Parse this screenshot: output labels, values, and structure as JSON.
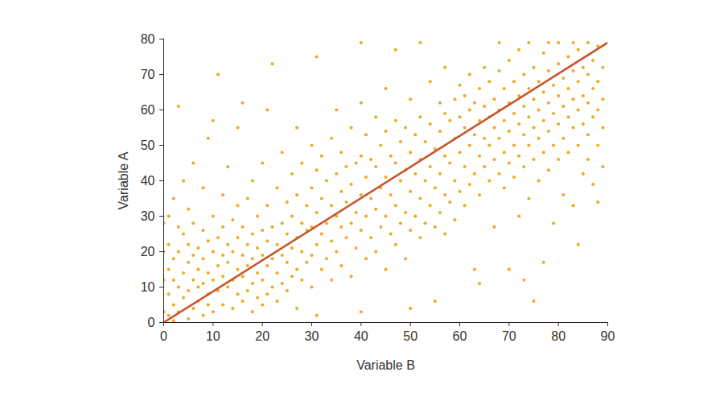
{
  "chart_data": {
    "type": "scatter",
    "x_label": "Variable B",
    "y_label": "Variable A",
    "xlim": [
      0,
      90
    ],
    "ylim": [
      0,
      80
    ],
    "xticks": [
      0,
      10,
      20,
      30,
      40,
      50,
      60,
      70,
      80,
      90
    ],
    "yticks": [
      0,
      10,
      20,
      30,
      40,
      50,
      60,
      70,
      80
    ],
    "grid": false,
    "series": [
      {
        "type": "scatter",
        "marker": "circle",
        "color": "#f0a81c",
        "x": [
          0,
          0,
          0,
          0,
          1,
          1,
          1,
          1,
          1,
          2,
          2,
          2,
          2,
          2,
          3,
          3,
          3,
          3,
          3,
          4,
          4,
          4,
          4,
          5,
          5,
          5,
          5,
          5,
          6,
          6,
          6,
          6,
          6,
          7,
          7,
          7,
          7,
          8,
          8,
          8,
          8,
          8,
          9,
          9,
          9,
          9,
          9,
          10,
          10,
          10,
          10,
          10,
          11,
          11,
          11,
          11,
          12,
          12,
          12,
          12,
          12,
          13,
          13,
          13,
          13,
          14,
          14,
          14,
          14,
          15,
          15,
          15,
          15,
          15,
          16,
          16,
          16,
          16,
          16,
          17,
          17,
          17,
          17,
          18,
          18,
          18,
          18,
          18,
          19,
          19,
          19,
          19,
          20,
          20,
          20,
          20,
          20,
          21,
          21,
          21,
          21,
          21,
          22,
          22,
          22,
          22,
          23,
          23,
          23,
          23,
          24,
          24,
          24,
          24,
          25,
          25,
          25,
          25,
          26,
          26,
          26,
          26,
          27,
          27,
          27,
          27,
          27,
          28,
          28,
          28,
          28,
          29,
          29,
          29,
          30,
          30,
          30,
          30,
          30,
          31,
          31,
          31,
          31,
          31,
          32,
          32,
          32,
          32,
          33,
          33,
          33,
          34,
          34,
          34,
          34,
          35,
          35,
          35,
          35,
          36,
          36,
          36,
          36,
          37,
          37,
          37,
          38,
          38,
          38,
          38,
          39,
          39,
          39,
          40,
          40,
          40,
          40,
          40,
          40,
          41,
          41,
          41,
          41,
          42,
          42,
          42,
          43,
          43,
          43,
          43,
          44,
          44,
          44,
          45,
          45,
          45,
          45,
          45,
          46,
          46,
          46,
          47,
          47,
          47,
          47,
          47,
          48,
          48,
          48,
          49,
          49,
          49,
          49,
          50,
          50,
          50,
          50,
          50,
          51,
          51,
          51,
          52,
          52,
          52,
          52,
          52,
          53,
          53,
          53,
          54,
          54,
          54,
          54,
          55,
          55,
          55,
          55,
          56,
          56,
          56,
          56,
          57,
          57,
          57,
          57,
          57,
          58,
          58,
          58,
          59,
          59,
          59,
          59,
          60,
          60,
          60,
          60,
          61,
          61,
          61,
          61,
          62,
          62,
          62,
          62,
          63,
          63,
          63,
          63,
          64,
          64,
          64,
          64,
          64,
          65,
          65,
          65,
          65,
          66,
          66,
          66,
          66,
          67,
          67,
          67,
          67,
          68,
          68,
          68,
          68,
          68,
          69,
          69,
          69,
          69,
          70,
          70,
          70,
          70,
          70,
          71,
          71,
          71,
          71,
          72,
          72,
          72,
          72,
          72,
          73,
          73,
          73,
          73,
          73,
          74,
          74,
          74,
          74,
          74,
          75,
          75,
          75,
          75,
          75,
          76,
          76,
          76,
          76,
          77,
          77,
          77,
          77,
          77,
          78,
          78,
          78,
          78,
          78,
          79,
          79,
          79,
          79,
          80,
          80,
          80,
          80,
          80,
          81,
          81,
          81,
          81,
          82,
          82,
          82,
          82,
          83,
          83,
          83,
          83,
          83,
          84,
          84,
          84,
          84,
          84,
          85,
          85,
          85,
          85,
          86,
          86,
          86,
          86,
          86,
          87,
          87,
          87,
          87,
          88,
          88,
          88,
          88,
          88,
          89,
          89,
          89,
          89
        ],
        "values": [
          3,
          12,
          20,
          28,
          2,
          8,
          15,
          22,
          30,
          5,
          12,
          18,
          35,
          0.5,
          3,
          10,
          20,
          27,
          61,
          7,
          14,
          25,
          40,
          1,
          9,
          17,
          22,
          32,
          4,
          12,
          19,
          28,
          45,
          6,
          15,
          21,
          10,
          2,
          11,
          18,
          26,
          38,
          8,
          14,
          23,
          52,
          5,
          3,
          12,
          20,
          30,
          57,
          70,
          9,
          16,
          24,
          5,
          13,
          19,
          27,
          36,
          10,
          17,
          22,
          44,
          4,
          12,
          20,
          29,
          8,
          15,
          24,
          33,
          55,
          6,
          13,
          19,
          27,
          62,
          9,
          16,
          22,
          35,
          3,
          11,
          18,
          25,
          40,
          7,
          14,
          21,
          30,
          5,
          12,
          19,
          26,
          45,
          8,
          16,
          23,
          33,
          60,
          10,
          18,
          27,
          73,
          6,
          14,
          22,
          38,
          11,
          19,
          28,
          48,
          9,
          17,
          25,
          34,
          13,
          21,
          30,
          42,
          4,
          15,
          24,
          36,
          55,
          12,
          20,
          28,
          45,
          17,
          26,
          33,
          10,
          19,
          27,
          38,
          50,
          2,
          22,
          31,
          43,
          75,
          15,
          25,
          35,
          47,
          18,
          28,
          40,
          12,
          23,
          33,
          52,
          20,
          30,
          42,
          60,
          16,
          27,
          37,
          48,
          24,
          34,
          44,
          13,
          28,
          39,
          55,
          21,
          31,
          45,
          3,
          26,
          36,
          47,
          62,
          79,
          18,
          30,
          41,
          53,
          24,
          35,
          46,
          20,
          32,
          44,
          58,
          27,
          38,
          50,
          15,
          30,
          41,
          54,
          66,
          25,
          36,
          47,
          22,
          33,
          45,
          57,
          77,
          28,
          40,
          51,
          18,
          31,
          43,
          55,
          4,
          26,
          37,
          48,
          63,
          30,
          42,
          53,
          24,
          35,
          46,
          58,
          79,
          28,
          40,
          51,
          33,
          44,
          56,
          68,
          6,
          27,
          38,
          49,
          31,
          42,
          54,
          62,
          25,
          36,
          47,
          59,
          72,
          34,
          45,
          57,
          29,
          40,
          52,
          63,
          37,
          48,
          58,
          67,
          33,
          44,
          55,
          64,
          39,
          50,
          60,
          70,
          15,
          42,
          53,
          62,
          11,
          36,
          47,
          57,
          66,
          44,
          52,
          61,
          72,
          40,
          50,
          58,
          68,
          27,
          46,
          55,
          63,
          42,
          52,
          60,
          71,
          79,
          38,
          48,
          57,
          66,
          15,
          45,
          54,
          62,
          74,
          41,
          50,
          59,
          68,
          30,
          47,
          56,
          64,
          77,
          12,
          44,
          53,
          61,
          70,
          35,
          50,
          58,
          66,
          79,
          6,
          46,
          55,
          63,
          72,
          40,
          52,
          60,
          68,
          17,
          48,
          57,
          65,
          76,
          43,
          54,
          62,
          71,
          79,
          28,
          50,
          59,
          67,
          46,
          56,
          64,
          73,
          79,
          36,
          52,
          61,
          69,
          48,
          58,
          66,
          75,
          33,
          55,
          63,
          71,
          79,
          22,
          50,
          60,
          68,
          77,
          42,
          56,
          64,
          72,
          46,
          53,
          62,
          70,
          79,
          39,
          58,
          66,
          74,
          34,
          50,
          60,
          68,
          78,
          44,
          55,
          63,
          72
        ]
      },
      {
        "type": "line",
        "line_style": "solid",
        "color": "#c8532b",
        "x": [
          0,
          90
        ],
        "values": [
          0,
          79
        ]
      }
    ]
  }
}
